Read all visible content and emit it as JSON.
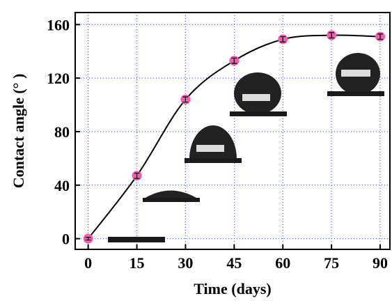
{
  "chart_data": {
    "type": "line",
    "x_label": "Time (days)",
    "y_label": "Contact angle (° )",
    "x": [
      0,
      15,
      30,
      45,
      60,
      75,
      90
    ],
    "series": [
      {
        "color": "#ee5fae",
        "values": [
          0,
          47,
          104,
          133,
          149,
          152,
          151
        ],
        "errors": [
          1,
          2,
          2,
          2,
          2,
          2,
          2
        ]
      }
    ],
    "xlim": [
      -4,
      93
    ],
    "ylim": [
      -8,
      169
    ],
    "xticks": [
      0,
      15,
      30,
      45,
      60,
      75,
      90
    ],
    "yticks": [
      0,
      40,
      80,
      120,
      160
    ],
    "grid": true
  }
}
